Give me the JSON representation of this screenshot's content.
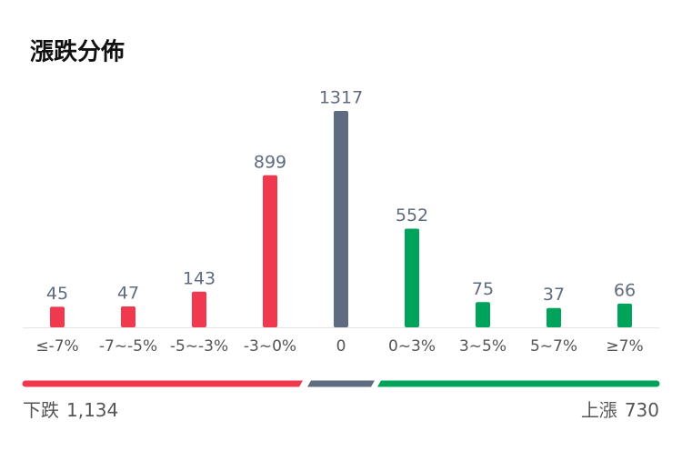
{
  "chart_data": {
    "type": "bar",
    "title": "漲跌分佈",
    "categories": [
      "≤-7%",
      "-7~-5%",
      "-5~-3%",
      "-3~0%",
      "0",
      "0~3%",
      "3~5%",
      "5~7%",
      "≥7%"
    ],
    "values": [
      45,
      47,
      143,
      899,
      1317,
      552,
      75,
      37,
      66
    ],
    "colors": [
      "#f0384f",
      "#f0384f",
      "#f0384f",
      "#f0384f",
      "#5f6b80",
      "#00a35a",
      "#00a35a",
      "#00a35a",
      "#00a35a"
    ],
    "summary": [
      {
        "name": "下跌",
        "value": 1134,
        "value_label": "1,134",
        "color": "#f0384f"
      },
      {
        "name": "上漲",
        "value": 730,
        "value_label": "730",
        "color": "#00a35a"
      }
    ],
    "neutral_color": "#5f6b80"
  }
}
